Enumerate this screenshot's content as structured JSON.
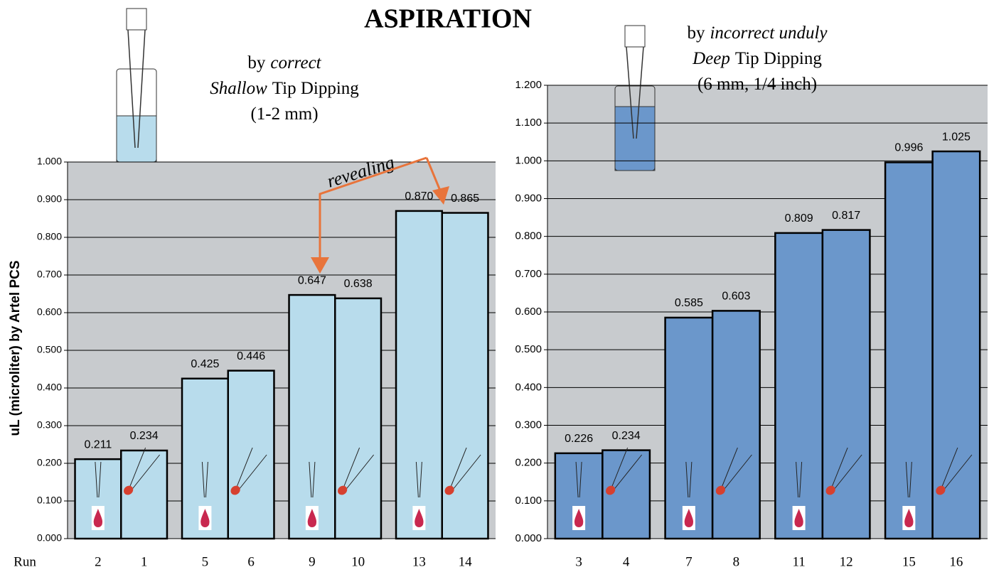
{
  "title": "ASPIRATION",
  "chart_data": [
    {
      "type": "bar",
      "subtitle": [
        [
          {
            "text": "by"
          },
          {
            "text": "correct",
            "italic": true
          }
        ],
        [
          {
            "text": "Shallow",
            "italic": true
          },
          {
            "text": "Tip Dipping"
          }
        ],
        [
          {
            "text": "(1-2 mm)"
          }
        ]
      ],
      "annotation": "revealing",
      "x_label": "Run",
      "y_label": "uL (microliter) by Artel PCS",
      "categories": [
        "2",
        "1",
        "5",
        "6",
        "9",
        "10",
        "13",
        "14"
      ],
      "values": [
        0.211,
        0.234,
        0.425,
        0.446,
        0.647,
        0.638,
        0.87,
        0.865
      ],
      "value_labels": [
        "0.211",
        "0.234",
        "0.425",
        "0.446",
        "0.647",
        "0.638",
        "0.870",
        "0.865"
      ],
      "color": "#b8dcec",
      "ylim": [
        0,
        1
      ],
      "yticks": [
        {
          "value": 0,
          "label": "0.000"
        },
        {
          "value": 0.1,
          "label": "0.100"
        },
        {
          "value": 0.2,
          "label": "0.200"
        },
        {
          "value": 0.3,
          "label": "0.300"
        },
        {
          "value": 0.4,
          "label": "0.400"
        },
        {
          "value": 0.5,
          "label": "0.500"
        },
        {
          "value": 0.6,
          "label": "0.600"
        },
        {
          "value": 0.7,
          "label": "0.700"
        },
        {
          "value": 0.8,
          "label": "0.800"
        },
        {
          "value": 0.9,
          "label": "0.900"
        },
        {
          "value": 1,
          "label": "1.000"
        }
      ],
      "grid": true
    },
    {
      "type": "bar",
      "subtitle": [
        [
          {
            "text": "by"
          },
          {
            "text": "incorrect unduly",
            "italic": true
          }
        ],
        [
          {
            "text": "Deep",
            "italic": true
          },
          {
            "text": "Tip Dipping"
          }
        ],
        [
          {
            "text": "(6 mm, 1/4 inch)"
          }
        ]
      ],
      "categories": [
        "3",
        "4",
        "7",
        "8",
        "11",
        "12",
        "15",
        "16"
      ],
      "values": [
        0.226,
        0.234,
        0.585,
        0.603,
        0.809,
        0.817,
        0.996,
        1.025
      ],
      "value_labels": [
        "0.226",
        "0.234",
        "0.585",
        "0.603",
        "0.809",
        "0.817",
        "0.996",
        "1.025"
      ],
      "color": "#6b97cb",
      "ylim": [
        0,
        1.2
      ],
      "yticks": [
        {
          "value": 0,
          "label": "0.000"
        },
        {
          "value": 0.1,
          "label": "0.100"
        },
        {
          "value": 0.2,
          "label": "0.200"
        },
        {
          "value": 0.3,
          "label": "0.300"
        },
        {
          "value": 0.4,
          "label": "0.400"
        },
        {
          "value": 0.5,
          "label": "0.500"
        },
        {
          "value": 0.6,
          "label": "0.600"
        },
        {
          "value": 0.7,
          "label": "0.700"
        },
        {
          "value": 0.8,
          "label": "0.800"
        },
        {
          "value": 0.9,
          "label": "0.900"
        },
        {
          "value": 1,
          "label": "1.000"
        },
        {
          "value": 1.1,
          "label": "1.100"
        },
        {
          "value": 1.2,
          "label": "1.200"
        }
      ],
      "grid": true
    }
  ]
}
